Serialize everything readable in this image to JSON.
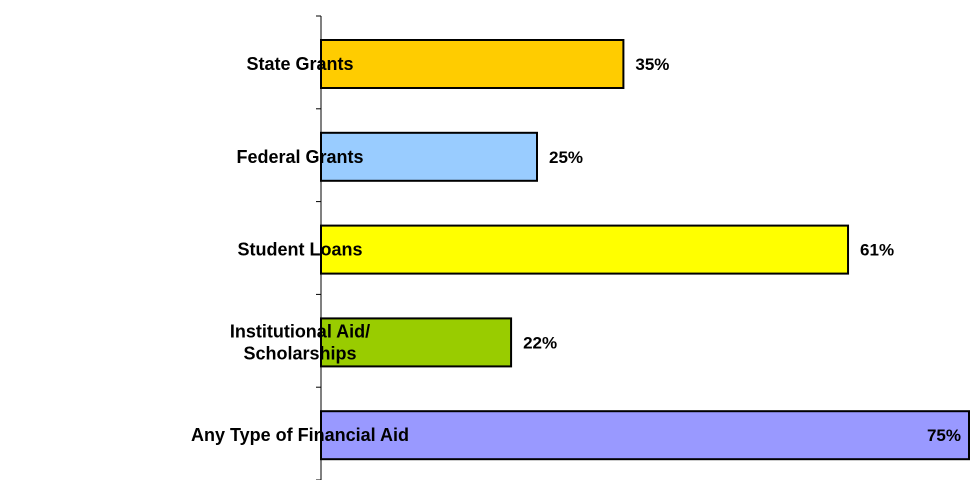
{
  "chart_data": {
    "type": "bar",
    "orientation": "horizontal",
    "title": "",
    "xlabel": "",
    "ylabel": "",
    "xlim": [
      0,
      75
    ],
    "grid": false,
    "legend": "none",
    "categories": [
      "State Grants",
      "Federal Grants",
      "Student Loans",
      "Institutional Aid/\nScholarships",
      "Any Type of Financial Aid"
    ],
    "values": [
      35,
      25,
      61,
      22,
      75
    ],
    "value_labels": [
      "35%",
      "25%",
      "61%",
      "22%",
      "75%"
    ],
    "colors": [
      "#FFCC00",
      "#99CCFF",
      "#FFFF00",
      "#99CC00",
      "#9999FF"
    ],
    "outline_color": "#000000"
  }
}
